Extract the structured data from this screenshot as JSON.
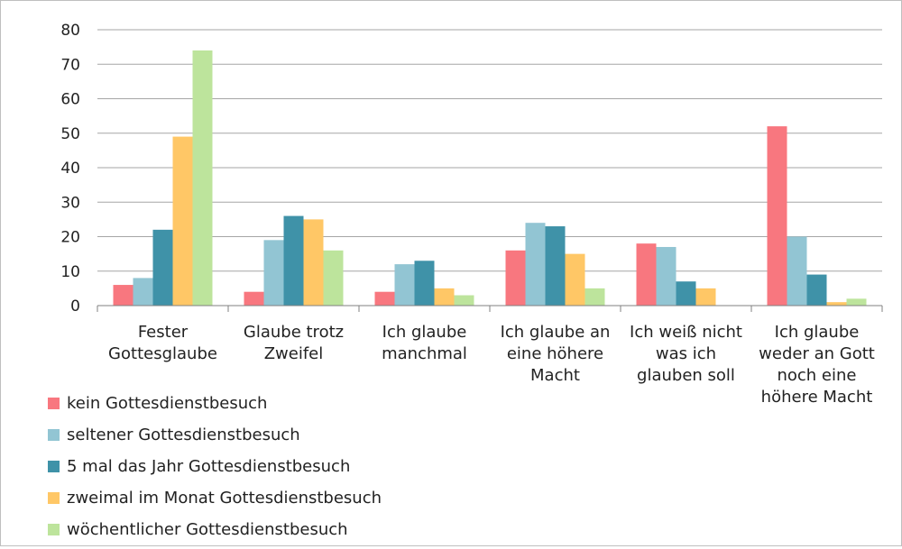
{
  "chart_data": {
    "type": "bar",
    "title": "",
    "xlabel": "",
    "ylabel": "",
    "ylim": [
      0,
      80
    ],
    "yticks": [
      0,
      10,
      20,
      30,
      40,
      50,
      60,
      70,
      80
    ],
    "grid": true,
    "legend_position": "bottom-left",
    "categories": [
      "Fester Gottesglaube",
      "Glaube trotz Zweifel",
      "Ich glaube manchmal",
      "Ich glaube an eine höhere Macht",
      "Ich weiß nicht was ich glauben soll",
      "Ich glaube weder an Gott noch eine höhere Macht"
    ],
    "category_lines": [
      [
        "Fester",
        "Gottesglaube"
      ],
      [
        "Glaube trotz",
        "Zweifel"
      ],
      [
        "Ich glaube",
        "manchmal"
      ],
      [
        "Ich glaube an",
        "eine höhere",
        "Macht"
      ],
      [
        "Ich weiß nicht",
        "was ich",
        "glauben soll"
      ],
      [
        "Ich glaube",
        "weder an Gott",
        "noch eine",
        "höhere Macht"
      ]
    ],
    "series": [
      {
        "name": "kein Gottesdienstbesuch",
        "color": "#f8777f",
        "values": [
          6,
          4,
          4,
          16,
          18,
          52
        ]
      },
      {
        "name": "seltener Gottesdienstbesuch",
        "color": "#92c5d3",
        "values": [
          8,
          19,
          12,
          24,
          17,
          20
        ]
      },
      {
        "name": "5 mal das Jahr Gottesdienstbesuch",
        "color": "#3f92a8",
        "values": [
          22,
          26,
          13,
          23,
          7,
          9
        ]
      },
      {
        "name": "zweimal im Monat Gottesdienstbesuch",
        "color": "#ffc766",
        "values": [
          49,
          25,
          5,
          15,
          5,
          1
        ]
      },
      {
        "name": "wöchentlicher Gottesdienstbesuch",
        "color": "#bde49c",
        "values": [
          74,
          16,
          3,
          5,
          0,
          2
        ]
      }
    ]
  }
}
